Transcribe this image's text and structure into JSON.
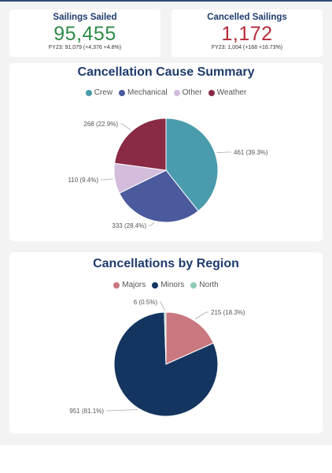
{
  "kpis": [
    {
      "title": "Sailings Sailed",
      "value": "95,455",
      "sub": "FY23: 91,079 (+4,376 +4.8%)",
      "color": "#2e8b47"
    },
    {
      "title": "Cancelled Sailings",
      "value": "1,172",
      "sub": "FY23: 1,004 (+168 +16.73%)",
      "color": "#c0392b"
    }
  ],
  "chart_data": [
    {
      "type": "pie",
      "title": "Cancellation Cause Summary",
      "slices": [
        {
          "label": "Crew",
          "value": 461,
          "text": "461 (39.3%)",
          "color": "#4a9cac"
        },
        {
          "label": "Mechanical",
          "value": 333,
          "text": "333 (28.4%)",
          "color": "#4a5a9c"
        },
        {
          "label": "Other",
          "value": 110,
          "text": "110 (9.4%)",
          "color": "#d3bcdc"
        },
        {
          "label": "Weather",
          "value": 268,
          "text": "268 (22.9%)",
          "color": "#8a2a45"
        }
      ]
    },
    {
      "type": "pie",
      "title": "Cancellations by Region",
      "slices": [
        {
          "label": "Majors",
          "value": 215,
          "text": "215 (18.3%)",
          "color": "#c9787f"
        },
        {
          "label": "Minors",
          "value": 951,
          "text": "951 (81.1%)",
          "color": "#14355f"
        },
        {
          "label": "North",
          "value": 6,
          "text": "6 (0.5%)",
          "color": "#8fc9b5"
        }
      ]
    }
  ]
}
